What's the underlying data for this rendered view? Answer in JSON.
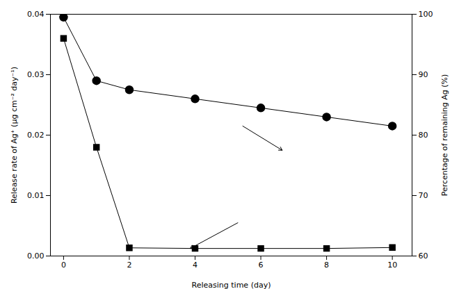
{
  "chart_data": {
    "type": "line",
    "x": [
      0,
      1,
      2,
      4,
      6,
      8,
      10
    ],
    "series": [
      {
        "values": [
          0.036,
          0.018,
          0.00135,
          0.00125,
          0.00125,
          0.00125,
          0.0014
        ],
        "color": "#000000",
        "marker": "square"
      },
      {
        "values": [
          99.5,
          89.0,
          87.5,
          86.0,
          84.5,
          83.0,
          81.5
        ],
        "color": "#000000",
        "marker": "circle",
        "axis": "y2"
      }
    ],
    "xlabel": "Releasing time (day)",
    "ylabel": "Release rate of Ag⁺ (μg cm⁻² day⁻¹)",
    "y2label": "Percentage of remaining Ag (%)",
    "xlim": [
      -0.4,
      10.6
    ],
    "ylim": [
      0,
      0.04
    ],
    "y2lim": [
      60,
      100
    ],
    "xticks": [
      0,
      2,
      4,
      6,
      8,
      10
    ],
    "yticks": [
      {
        "value": 0,
        "label": "0.00"
      },
      0.01,
      0.02,
      0.03,
      0.04
    ],
    "y2ticks": [
      60,
      70,
      80,
      90,
      100
    ],
    "annotations": [
      {
        "type": "arrow",
        "from": [
          5.3,
          0.0055
        ],
        "to": [
          3.85,
          0.00125
        ],
        "color": "#000000"
      },
      {
        "type": "arrow",
        "from": [
          5.45,
          0.0215
        ],
        "to": [
          6.65,
          0.0175
        ],
        "color": "#000000"
      }
    ],
    "grid": false
  }
}
